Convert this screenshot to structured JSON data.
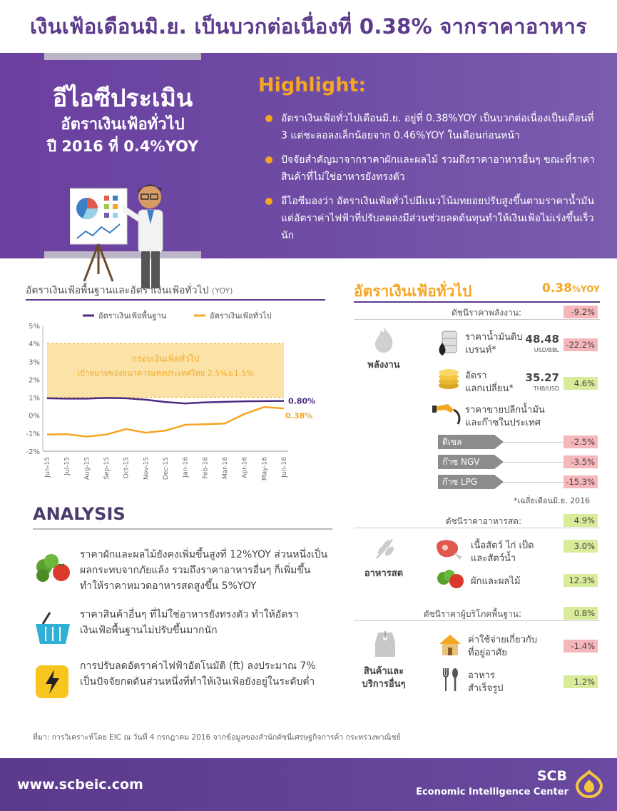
{
  "title": "เงินเฟ้อเดือนมิ.ย. เป็นบวกต่อเนื่องที่ 0.38% จากราคาอาหาร",
  "banner": {
    "line1": "อีไอซีประเมิน",
    "line2": "อัตราเงินเฟ้อทั่วไป",
    "line3": "ปี 2016 ที่ 0.4%YOY",
    "highlight_title": "Highlight:",
    "highlights": [
      "อัตราเงินเฟ้อทั่วไปเดือนมิ.ย. อยู่ที่ 0.38%YOY เป็นบวกต่อเนื่องเป็นเดือนที่ 3 แต่ชะลอลงเล็กน้อยจาก 0.46%YOY ในเดือนก่อนหน้า",
      "ปัจจัยสำคัญมาจากราคาผักและผลไม้ รวมถึงราคาอาหารอื่นๆ ขณะที่ราคาสินค้าที่ไม่ใช่อาหารยังทรงตัว",
      "อีไอซีมองว่า อัตราเงินเฟ้อทั่วไปมีแนวโน้มทยอยปรับสูงขึ้นตามราคาน้ำมัน แต่อัตราค่าไฟฟ้าที่ปรับลดลงมีส่วนช่วยลดต้นทุนทำให้เงินเฟ้อไม่เร่งขึ้นเร็วนัก"
    ]
  },
  "chart_title": "อัตราเงินเฟ้อพื้นฐานและอัตราเงินเฟ้อทั่วไป",
  "chart_title_unit": "(YOY)",
  "chart_data": {
    "type": "line",
    "categories": [
      "Jun-15",
      "Jul-15",
      "Aug-15",
      "Sep-15",
      "Oct-15",
      "Nov-15",
      "Dec-15",
      "Jan-16",
      "Feb-16",
      "Mar-16",
      "Apr-16",
      "May-16",
      "Jun-16"
    ],
    "series": [
      {
        "name": "อัตราเงินเฟ้อพื้นฐาน",
        "color": "#4b2c82",
        "values": [
          0.95,
          0.93,
          0.93,
          0.97,
          0.95,
          0.87,
          0.74,
          0.66,
          0.72,
          0.75,
          0.78,
          0.79,
          0.8
        ]
      },
      {
        "name": "อัตราเงินเฟ้อทั่วไป",
        "color": "#f5a623",
        "values": [
          -1.07,
          -1.05,
          -1.19,
          -1.07,
          -0.77,
          -0.97,
          -0.85,
          -0.53,
          -0.5,
          -0.46,
          0.07,
          0.46,
          0.38
        ]
      }
    ],
    "ylim": [
      -2,
      5
    ],
    "yticks": [
      "-2%",
      "-1%",
      "0%",
      "1%",
      "2%",
      "3%",
      "4%",
      "5%"
    ],
    "band": {
      "from": 1,
      "to": 4,
      "color": "#fbe3a8",
      "label1": "กรอบเงินเฟ้อทั่วไป",
      "label2": "เป้าหมายของธนาคารแห่งประเทศไทย 2.5%±1.5%"
    },
    "end_labels": [
      "0.80%",
      "0.38%"
    ],
    "legend_position": "top",
    "grid": false
  },
  "analysis": {
    "title": "ANALYSIS",
    "items": [
      {
        "icon": "vegetables-icon",
        "text": "ราคาผักและผลไม้ยังคงเพิ่มขึ้นสูงที่ 12%YOY ส่วนหนึ่งเป็นผลกระทบจากภัยแล้ง รวมถึงราคาอาหารอื่นๆ ก็เพิ่มขึ้น ทำให้ราคาหมวดอาหารสดสูงขึ้น 5%YOY"
      },
      {
        "icon": "basket-icon",
        "text": "ราคาสินค้าอื่นๆ ที่ไม่ใช่อาหารยังทรงตัว ทำให้อัตราเงินเฟ้อพื้นฐานไม่ปรับขึ้นมากนัก"
      },
      {
        "icon": "lightning-icon",
        "text": "การปรับลดอัตราค่าไฟฟ้าอัตโนมัติ (ft) ลงประมาณ 7% เป็นปัจจัยกดดันส่วนหนึ่งที่ทำให้เงินเฟ้อยังอยู่ในระดับต่ำ"
      }
    ]
  },
  "right": {
    "title": "อัตราเงินเฟ้อทั่วไป",
    "value": "0.38",
    "value_unit": "%YOY",
    "energy": {
      "index_label": "ดัชนีราคาพลังงาน:",
      "index_value": "-9.2%",
      "category": "พลังงาน",
      "brent_label1": "ราคาน้ำมันดิบ",
      "brent_label2": "เบรนท์*",
      "brent_value": "48.48",
      "brent_unit": "USD/BBL",
      "brent_change": "-22.2%",
      "fx_label1": "อัตรา",
      "fx_label2": "แลกเปลี่ยน*",
      "fx_value": "35.27",
      "fx_unit": "THB/USD",
      "fx_change": "4.6%",
      "retail_label1": "ราคาขายปลีกน้ำมัน",
      "retail_label2": "และก๊าซในประเทศ",
      "fuels": [
        {
          "name": "ดีเซล",
          "value": "-2.5%"
        },
        {
          "name": "ก๊าซ NGV",
          "value": "-3.5%"
        },
        {
          "name": "ก๊าซ LPG",
          "value": "-15.3%"
        }
      ],
      "footnote": "*เฉลี่ยเดือนมิ.ย. 2016"
    },
    "food": {
      "index_label": "ดัชนีราคาอาหารสด:",
      "index_value": "4.9%",
      "category": "อาหารสด",
      "meat_label1": "เนื้อสัตว์ ไก่ เป็ด",
      "meat_label2": "และสัตว์น้ำ",
      "meat_value": "3.0%",
      "veg_label": "ผักและผลไม้",
      "veg_value": "12.3%"
    },
    "core": {
      "index_label": "ดัชนีราคาผู้บริโภคพื้นฐาน:",
      "index_value": "0.8%",
      "category1": "สินค้าและ",
      "category2": "บริการอื่นๆ",
      "housing_label1": "ค่าใช้จ่ายเกี่ยวกับ",
      "housing_label2": "ที่อยู่อาศัย",
      "housing_value": "-1.4%",
      "meal_label1": "อาหาร",
      "meal_label2": "สำเร็จรูป",
      "meal_value": "1.2%"
    }
  },
  "source": "ที่มา: การวิเคราะห์โดย EIC ณ วันที่ 4 กรกฎาคม 2016 จากข้อมูลของสำนักดัชนีเศรษฐกิจการค้า กระทรวงพาณิชย์",
  "footer": {
    "url": "www.scbeic.com",
    "brand": "SCB",
    "brand_sub": "Economic Intelligence Center"
  }
}
